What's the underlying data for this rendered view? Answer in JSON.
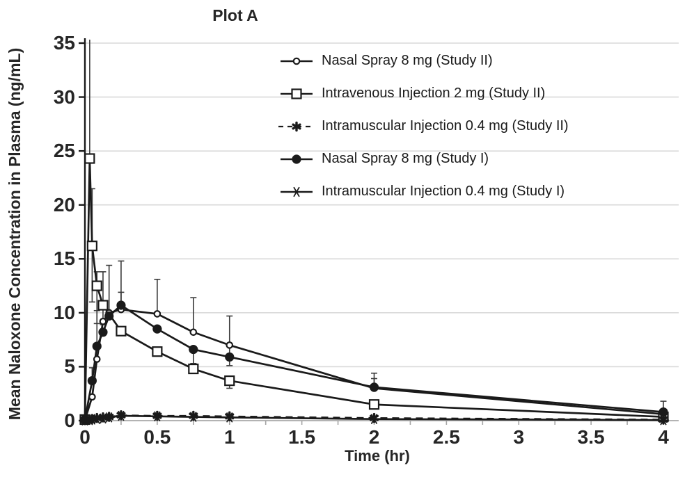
{
  "chart_data": {
    "type": "line",
    "title": "Plot A",
    "xlabel": "Time (hr)",
    "ylabel": "Mean Naloxone Concentration in Plasma (ng/mL)",
    "xlim": [
      0,
      4.1
    ],
    "ylim": [
      0,
      35
    ],
    "grid": "horizontal-only",
    "legend_position": "top-right-inside",
    "x_ticks": [
      0,
      0.5,
      1,
      1.5,
      2,
      2.5,
      3,
      3.5,
      4
    ],
    "x_tick_labels": [
      "0",
      "0.5",
      "1",
      "1.5",
      "2",
      "2.5",
      "3",
      "3.5",
      "4"
    ],
    "x_minor_tick_step": 0.25,
    "y_ticks": [
      0,
      5,
      10,
      15,
      20,
      25,
      30,
      35
    ],
    "y_tick_labels": [
      "0",
      "5",
      "10",
      "15",
      "20",
      "25",
      "30",
      "35"
    ],
    "colors": {
      "line": "#1a1a1a",
      "grid": "#d9d9d9",
      "axis": "#b3b3b3",
      "minor_tick": "#a6a6a6",
      "error": "#3a3a3a",
      "text": "#262626"
    },
    "series": [
      {
        "name": "Nasal Spray 8 mg (Study II)",
        "marker": "open-circle",
        "line": "solid",
        "x": [
          0,
          0.05,
          0.083,
          0.125,
          0.167,
          0.25,
          0.5,
          0.75,
          1,
          2,
          4
        ],
        "y": [
          0.05,
          2.2,
          5.7,
          9.2,
          10.0,
          10.3,
          9.9,
          8.2,
          7.0,
          3.0,
          0.6
        ],
        "error_bars": [
          {
            "x": 0.25,
            "up": 1.6
          },
          {
            "x": 0.5,
            "up": 3.2
          },
          {
            "x": 0.75,
            "up": 3.2
          },
          {
            "x": 1,
            "up": 2.7,
            "down": 1.9
          },
          {
            "x": 2,
            "up": 0.9
          }
        ]
      },
      {
        "name": "Intravenous Injection 2 mg (Study II)",
        "marker": "open-square",
        "line": "solid",
        "x": [
          0,
          0.033,
          0.05,
          0.083,
          0.125,
          0.25,
          0.5,
          0.75,
          1,
          2,
          4
        ],
        "y": [
          0.1,
          24.3,
          16.2,
          12.5,
          10.7,
          8.3,
          6.4,
          4.8,
          3.7,
          1.5,
          0.35
        ],
        "error_bars": [
          {
            "x": 0.033,
            "up": 11.5
          },
          {
            "x": 0.05,
            "up": 5.3,
            "down": 5.2
          },
          {
            "x": 0.083,
            "up": 1.3,
            "down": 3.5
          },
          {
            "x": 0.125,
            "up": 3.1,
            "down": 1.8
          },
          {
            "x": 1,
            "down": 0.7
          }
        ]
      },
      {
        "name": "Intramuscular Injection 0.4 mg (Study II)",
        "marker": "bold-asterisk",
        "line": "dashed",
        "x": [
          0,
          0.033,
          0.05,
          0.083,
          0.125,
          0.167,
          0.25,
          0.5,
          0.75,
          1,
          2,
          4
        ],
        "y": [
          0.05,
          0.1,
          0.15,
          0.25,
          0.3,
          0.35,
          0.5,
          0.45,
          0.45,
          0.4,
          0.25,
          0.1
        ],
        "error_bars": []
      },
      {
        "name": "Nasal Spray 8 mg (Study I)",
        "marker": "filled-circle",
        "line": "solid",
        "x": [
          0,
          0.05,
          0.083,
          0.125,
          0.167,
          0.25,
          0.5,
          0.75,
          1,
          2,
          4
        ],
        "y": [
          0.1,
          3.7,
          6.9,
          8.2,
          9.7,
          10.7,
          8.5,
          6.6,
          5.9,
          3.1,
          0.8
        ],
        "error_bars": [
          {
            "x": 0.05,
            "up": 1.2
          },
          {
            "x": 0.083,
            "up": 3.3
          },
          {
            "x": 0.167,
            "up": 4.7
          },
          {
            "x": 0.25,
            "up": 4.1
          },
          {
            "x": 0.75,
            "down": 1.3
          },
          {
            "x": 2,
            "up": 1.3
          },
          {
            "x": 4,
            "up": 1.0
          }
        ]
      },
      {
        "name": "Intramuscular Injection 0.4 mg (Study I)",
        "marker": "asterisk",
        "line": "solid",
        "x": [
          0,
          0.033,
          0.05,
          0.083,
          0.125,
          0.167,
          0.25,
          0.5,
          0.75,
          1,
          2,
          4
        ],
        "y": [
          0.02,
          0.05,
          0.1,
          0.15,
          0.2,
          0.3,
          0.45,
          0.4,
          0.35,
          0.3,
          0.15,
          0.05
        ],
        "error_bars": []
      }
    ]
  }
}
